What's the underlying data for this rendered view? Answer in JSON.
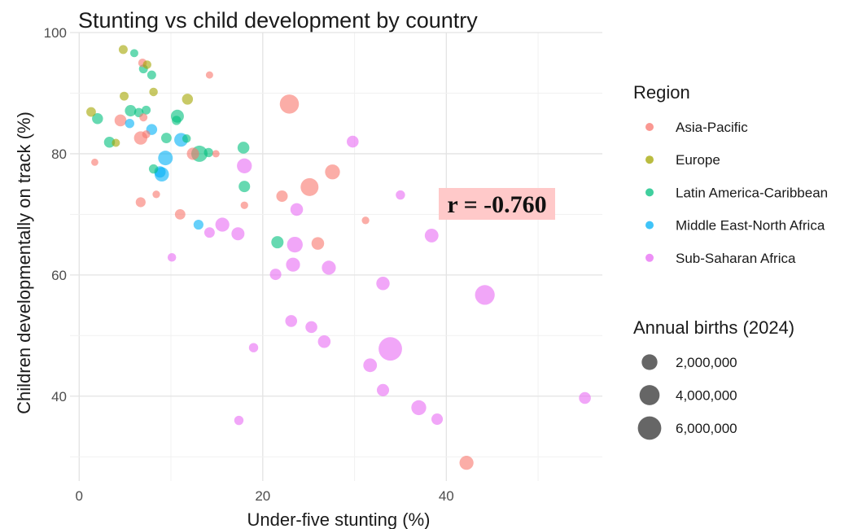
{
  "chart_data": {
    "type": "scatter",
    "title": "Stunting vs child development by country",
    "xlabel": "Under-five stunting (%)",
    "ylabel": "Children developmentally on track (%)",
    "xlim": [
      -1,
      57
    ],
    "ylim": [
      26,
      100
    ],
    "x_ticks": [
      0,
      20,
      40
    ],
    "y_ticks": [
      40,
      60,
      80,
      100
    ],
    "grid": true,
    "annotation": "r = -0.760",
    "legend": {
      "placement": "right",
      "region_title": "Region",
      "size_title": "Annual births (2024)",
      "size_entries": [
        "2,000,000",
        "4,000,000",
        "6,000,000"
      ],
      "size_values": [
        2000000,
        4000000,
        6000000
      ]
    },
    "colors": {
      "Asia-Pacific": "#F8766D",
      "Europe": "#A3A500",
      "Latin America-Caribbean": "#00BF7D",
      "Middle East-North Africa": "#00B0F6",
      "Sub-Saharan Africa": "#E76BF3"
    },
    "series": [
      {
        "name": "Asia-Pacific",
        "points": [
          {
            "x": 6.9,
            "y": 95.0,
            "births": 200000
          },
          {
            "x": 14.2,
            "y": 93.0,
            "births": 80000
          },
          {
            "x": 4.5,
            "y": 85.5,
            "births": 800000
          },
          {
            "x": 7.0,
            "y": 86.0,
            "births": 150000
          },
          {
            "x": 6.7,
            "y": 82.6,
            "births": 1200000
          },
          {
            "x": 7.3,
            "y": 83.2,
            "births": 150000
          },
          {
            "x": 1.7,
            "y": 78.6,
            "births": 70000
          },
          {
            "x": 12.4,
            "y": 80.0,
            "births": 900000
          },
          {
            "x": 14.9,
            "y": 80.0,
            "births": 80000
          },
          {
            "x": 22.9,
            "y": 88.2,
            "births": 3500000
          },
          {
            "x": 27.6,
            "y": 77.0,
            "births": 1700000
          },
          {
            "x": 25.1,
            "y": 74.5,
            "births": 2900000
          },
          {
            "x": 22.1,
            "y": 73.0,
            "births": 700000
          },
          {
            "x": 8.4,
            "y": 73.3,
            "births": 100000
          },
          {
            "x": 6.7,
            "y": 72.0,
            "births": 400000
          },
          {
            "x": 11.0,
            "y": 70.0,
            "births": 500000
          },
          {
            "x": 18.0,
            "y": 71.5,
            "births": 100000
          },
          {
            "x": 31.2,
            "y": 69.0,
            "births": 100000
          },
          {
            "x": 26.0,
            "y": 65.2,
            "births": 1000000
          },
          {
            "x": 42.2,
            "y": 29.0,
            "births": 1400000
          }
        ]
      },
      {
        "name": "Europe",
        "points": [
          {
            "x": 4.8,
            "y": 97.2,
            "births": 250000
          },
          {
            "x": 7.4,
            "y": 94.7,
            "births": 200000
          },
          {
            "x": 4.9,
            "y": 89.5,
            "births": 250000
          },
          {
            "x": 8.1,
            "y": 90.2,
            "births": 200000
          },
          {
            "x": 11.8,
            "y": 89.0,
            "births": 600000
          },
          {
            "x": 1.3,
            "y": 86.9,
            "births": 350000
          },
          {
            "x": 4.0,
            "y": 81.8,
            "births": 150000
          }
        ]
      },
      {
        "name": "Latin America-Caribbean",
        "points": [
          {
            "x": 6.0,
            "y": 96.6,
            "births": 150000
          },
          {
            "x": 7.0,
            "y": 94.0,
            "births": 250000
          },
          {
            "x": 7.9,
            "y": 93.0,
            "births": 250000
          },
          {
            "x": 2.0,
            "y": 85.8,
            "births": 600000
          },
          {
            "x": 5.6,
            "y": 87.1,
            "births": 700000
          },
          {
            "x": 6.5,
            "y": 86.8,
            "births": 300000
          },
          {
            "x": 7.3,
            "y": 87.2,
            "births": 250000
          },
          {
            "x": 10.7,
            "y": 86.2,
            "births": 1100000
          },
          {
            "x": 10.6,
            "y": 85.5,
            "births": 300000
          },
          {
            "x": 11.7,
            "y": 82.5,
            "births": 200000
          },
          {
            "x": 9.5,
            "y": 82.6,
            "births": 500000
          },
          {
            "x": 3.3,
            "y": 81.9,
            "births": 600000
          },
          {
            "x": 8.1,
            "y": 77.5,
            "births": 300000
          },
          {
            "x": 13.1,
            "y": 80.0,
            "births": 2200000
          },
          {
            "x": 14.1,
            "y": 80.2,
            "births": 300000
          },
          {
            "x": 17.9,
            "y": 81.0,
            "births": 800000
          },
          {
            "x": 18.0,
            "y": 74.6,
            "births": 700000
          },
          {
            "x": 21.6,
            "y": 65.4,
            "births": 900000
          }
        ]
      },
      {
        "name": "Middle East-North Africa",
        "points": [
          {
            "x": 7.9,
            "y": 84.0,
            "births": 600000
          },
          {
            "x": 5.5,
            "y": 85.0,
            "births": 300000
          },
          {
            "x": 11.1,
            "y": 82.3,
            "births": 1300000
          },
          {
            "x": 9.4,
            "y": 79.3,
            "births": 1600000
          },
          {
            "x": 8.8,
            "y": 77.0,
            "births": 700000
          },
          {
            "x": 9.0,
            "y": 76.6,
            "births": 1500000
          },
          {
            "x": 13.0,
            "y": 68.3,
            "births": 400000
          }
        ]
      },
      {
        "name": "Sub-Saharan Africa",
        "points": [
          {
            "x": 29.8,
            "y": 82.0,
            "births": 800000
          },
          {
            "x": 18.0,
            "y": 78.0,
            "births": 1700000
          },
          {
            "x": 35.0,
            "y": 73.2,
            "births": 300000
          },
          {
            "x": 23.7,
            "y": 70.8,
            "births": 1000000
          },
          {
            "x": 15.6,
            "y": 68.3,
            "births": 1400000
          },
          {
            "x": 14.2,
            "y": 67.0,
            "births": 500000
          },
          {
            "x": 17.3,
            "y": 66.8,
            "births": 1100000
          },
          {
            "x": 38.4,
            "y": 66.5,
            "births": 1300000
          },
          {
            "x": 23.5,
            "y": 65.0,
            "births": 2000000
          },
          {
            "x": 10.1,
            "y": 62.9,
            "births": 200000
          },
          {
            "x": 23.3,
            "y": 61.7,
            "births": 1400000
          },
          {
            "x": 27.2,
            "y": 61.2,
            "births": 1400000
          },
          {
            "x": 21.4,
            "y": 60.1,
            "births": 700000
          },
          {
            "x": 33.1,
            "y": 58.6,
            "births": 1200000
          },
          {
            "x": 44.2,
            "y": 56.7,
            "births": 3800000
          },
          {
            "x": 23.1,
            "y": 52.4,
            "births": 800000
          },
          {
            "x": 25.3,
            "y": 51.4,
            "births": 800000
          },
          {
            "x": 26.7,
            "y": 49.0,
            "births": 1000000
          },
          {
            "x": 19.0,
            "y": 48.0,
            "births": 300000
          },
          {
            "x": 33.9,
            "y": 47.8,
            "births": 6000000
          },
          {
            "x": 31.7,
            "y": 45.1,
            "births": 1300000
          },
          {
            "x": 33.1,
            "y": 41.0,
            "births": 900000
          },
          {
            "x": 37.0,
            "y": 38.1,
            "births": 1700000
          },
          {
            "x": 39.0,
            "y": 36.2,
            "births": 700000
          },
          {
            "x": 17.4,
            "y": 36.0,
            "births": 300000
          },
          {
            "x": 55.1,
            "y": 39.7,
            "births": 800000
          }
        ]
      }
    ]
  }
}
